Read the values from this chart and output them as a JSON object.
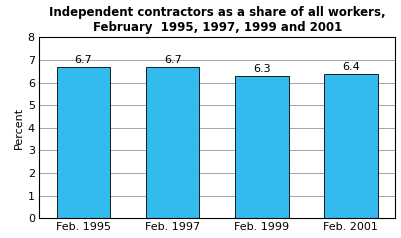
{
  "title_line1": "Independent contractors as a share of all workers,",
  "title_line2": "February  1995, 1997, 1999 and 2001",
  "categories": [
    "Feb. 1995",
    "Feb. 1997",
    "Feb. 1999",
    "Feb. 2001"
  ],
  "values": [
    6.7,
    6.7,
    6.3,
    6.4
  ],
  "bar_color": "#33BBEE",
  "ylabel": "Percent",
  "ylim": [
    0,
    8
  ],
  "yticks": [
    0,
    1,
    2,
    3,
    4,
    5,
    6,
    7,
    8
  ],
  "title_fontsize": 8.5,
  "label_fontsize": 8.0,
  "tick_fontsize": 8.0,
  "value_label_fontsize": 8.0,
  "background_color": "#ffffff",
  "bar_edge_color": "#000000",
  "bar_width": 0.6,
  "figsize": [
    4.01,
    2.38
  ],
  "dpi": 100
}
